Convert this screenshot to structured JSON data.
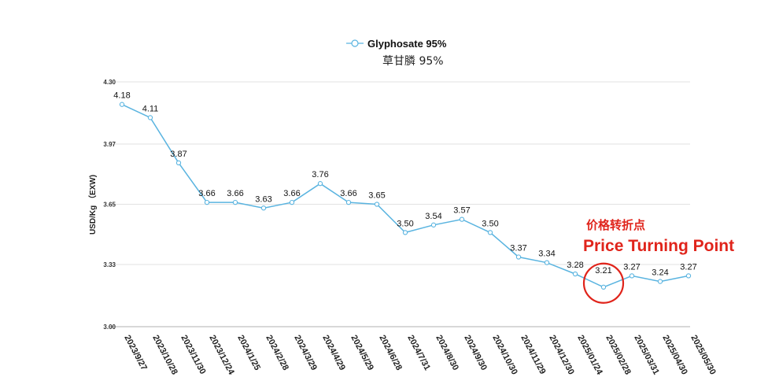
{
  "chart_data": {
    "type": "line",
    "legend": {
      "label": "Glyphosate 95%",
      "sublabel": "草甘膦 95%"
    },
    "ylabel": "USD/Kg （EXW)",
    "ylim": [
      3.0,
      4.3
    ],
    "yticks": [
      "3.00",
      "3.33",
      "3.65",
      "3.97",
      "4.30"
    ],
    "grid": "horizontal",
    "legend_position": "top-center",
    "series_color": "#5ab4e0",
    "categories": [
      "2023/9/27",
      "2023/10/28",
      "2023/11/30",
      "2023/12/24",
      "2024/1/25",
      "2024/2/28",
      "2024/3/29",
      "2024/4/29",
      "2024/5/29",
      "2024/6/28",
      "2024/7/31",
      "2024/8/30",
      "2024/9/30",
      "2024/10/30",
      "2024/11/29",
      "2024/12/30",
      "2025/01/24",
      "2025/02/28",
      "2025/03/31",
      "2025/04/30",
      "2025/05/30"
    ],
    "series": [
      {
        "name": "Glyphosate 95%",
        "values": [
          4.18,
          4.11,
          3.87,
          3.66,
          3.66,
          3.63,
          3.66,
          3.76,
          3.66,
          3.65,
          3.5,
          3.54,
          3.57,
          3.5,
          3.37,
          3.34,
          3.28,
          3.21,
          3.27,
          3.24,
          3.27
        ],
        "value_labels": [
          "4.18",
          "4.11",
          "3.87",
          "3.66",
          "3.66",
          "3.63",
          "3.66",
          "3.76",
          "3.66",
          "3.65",
          "3.50",
          "3.54",
          "3.57",
          "3.50",
          "3.37",
          "3.34",
          "3.28",
          "3.21",
          "3.27",
          "3.24",
          "3.27"
        ]
      }
    ],
    "annotation": {
      "text_cn": "价格转折点",
      "text_en": "Price Turning Point",
      "target_index": 17,
      "color": "#e0241b"
    }
  }
}
